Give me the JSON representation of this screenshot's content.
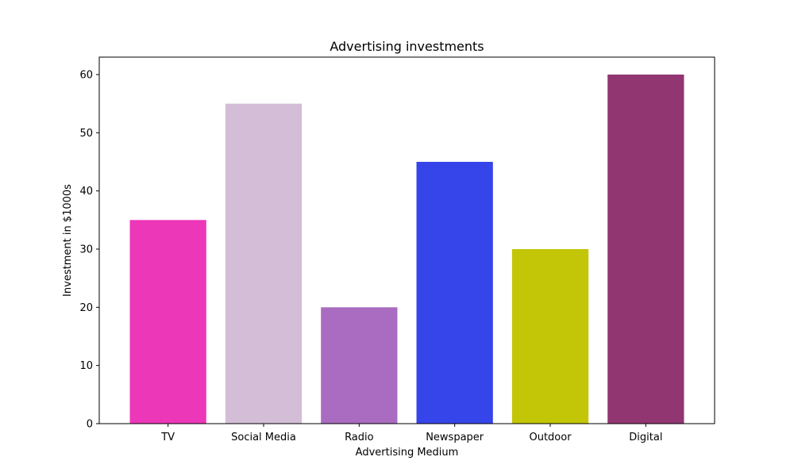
{
  "chart_data": {
    "type": "bar",
    "title": "Advertising investments",
    "xlabel": "Advertising Medium",
    "ylabel": "Investment in $1000s",
    "categories": [
      "TV",
      "Social Media",
      "Radio",
      "Newspaper",
      "Outdoor",
      "Digital"
    ],
    "values": [
      35,
      55,
      20,
      45,
      30,
      60
    ],
    "colors": [
      "#ec37b9",
      "#d4bdd6",
      "#a96cc0",
      "#3645e9",
      "#c2c607",
      "#923672"
    ],
    "ylim": [
      0,
      63
    ],
    "yticks": [
      0,
      10,
      20,
      30,
      40,
      50,
      60
    ],
    "grid": false,
    "legend": "none"
  }
}
